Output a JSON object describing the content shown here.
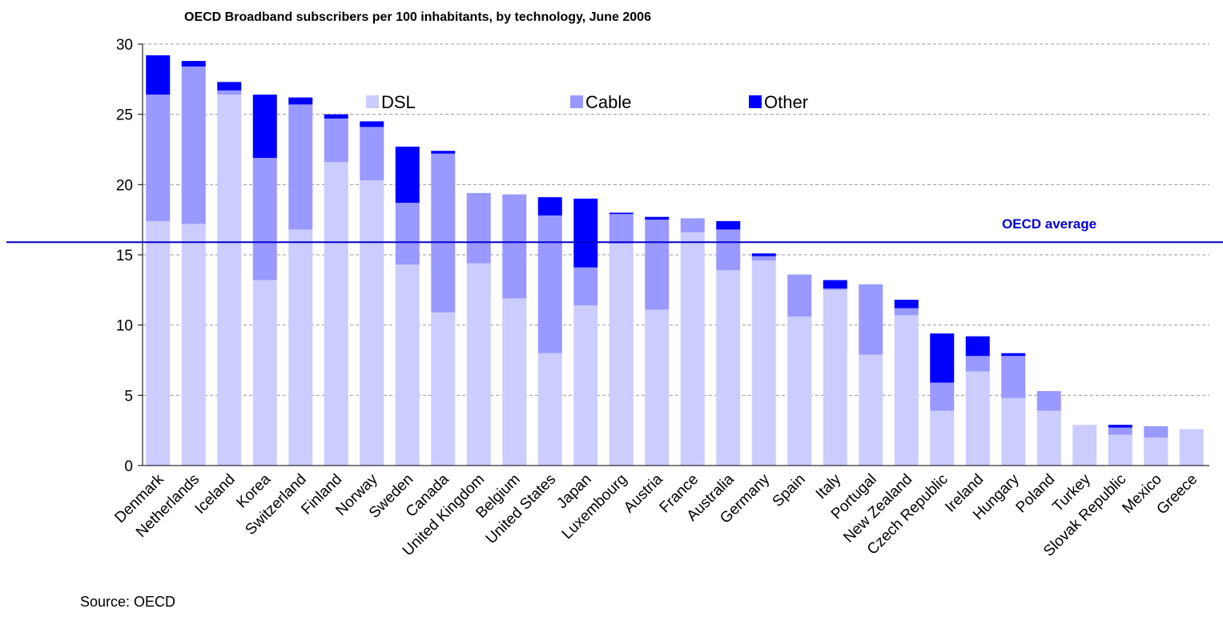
{
  "chart_data": {
    "type": "stacked_bar",
    "title": "OECD Broadband subscribers per 100 inhabitants, by technology, June 2006",
    "categories": [
      "Denmark",
      "Netherlands",
      "Iceland",
      "Korea",
      "Switzerland",
      "Finland",
      "Norway",
      "Sweden",
      "Canada",
      "United Kingdom",
      "Belgium",
      "United States",
      "Japan",
      "Luxembourg",
      "Austria",
      "France",
      "Australia",
      "Germany",
      "Spain",
      "Italy",
      "Portugal",
      "New Zealand",
      "Czech Republic",
      "Ireland",
      "Hungary",
      "Poland",
      "Turkey",
      "Slovak Republic",
      "Mexico",
      "Greece"
    ],
    "series": [
      {
        "name": "DSL",
        "color": "#ccccff",
        "values": [
          17.4,
          17.2,
          26.4,
          13.2,
          16.8,
          21.6,
          20.3,
          14.3,
          10.9,
          14.4,
          11.9,
          8.0,
          11.4,
          15.8,
          11.1,
          16.6,
          13.9,
          14.6,
          10.6,
          12.5,
          7.9,
          10.7,
          3.9,
          6.7,
          4.8,
          3.9,
          2.9,
          2.2,
          2.0,
          2.6
        ]
      },
      {
        "name": "Cable",
        "color": "#9999ff",
        "values": [
          9.0,
          11.2,
          0.3,
          8.7,
          8.9,
          3.1,
          3.8,
          4.4,
          11.3,
          5.0,
          7.4,
          9.8,
          2.7,
          2.1,
          6.4,
          1.0,
          2.9,
          0.3,
          3.0,
          0.1,
          5.0,
          0.5,
          2.0,
          1.1,
          3.0,
          1.4,
          0,
          0.5,
          0.8,
          0
        ]
      },
      {
        "name": "Other",
        "color": "#0000ff",
        "values": [
          2.8,
          0.4,
          0.6,
          4.5,
          0.5,
          0.3,
          0.4,
          4.0,
          0.2,
          0,
          0,
          1.3,
          4.9,
          0.1,
          0.2,
          0,
          0.6,
          0.2,
          0,
          0.6,
          0,
          0.6,
          3.5,
          1.4,
          0.2,
          0,
          0,
          0.2,
          0,
          0
        ]
      }
    ],
    "ylim": [
      0,
      30
    ],
    "yticks": [
      0,
      5,
      10,
      15,
      20,
      25,
      30
    ],
    "grid": true,
    "reference_line": {
      "label": "OECD average",
      "value": 15.9,
      "color": "#0000cc"
    },
    "source": "Source: OECD"
  }
}
